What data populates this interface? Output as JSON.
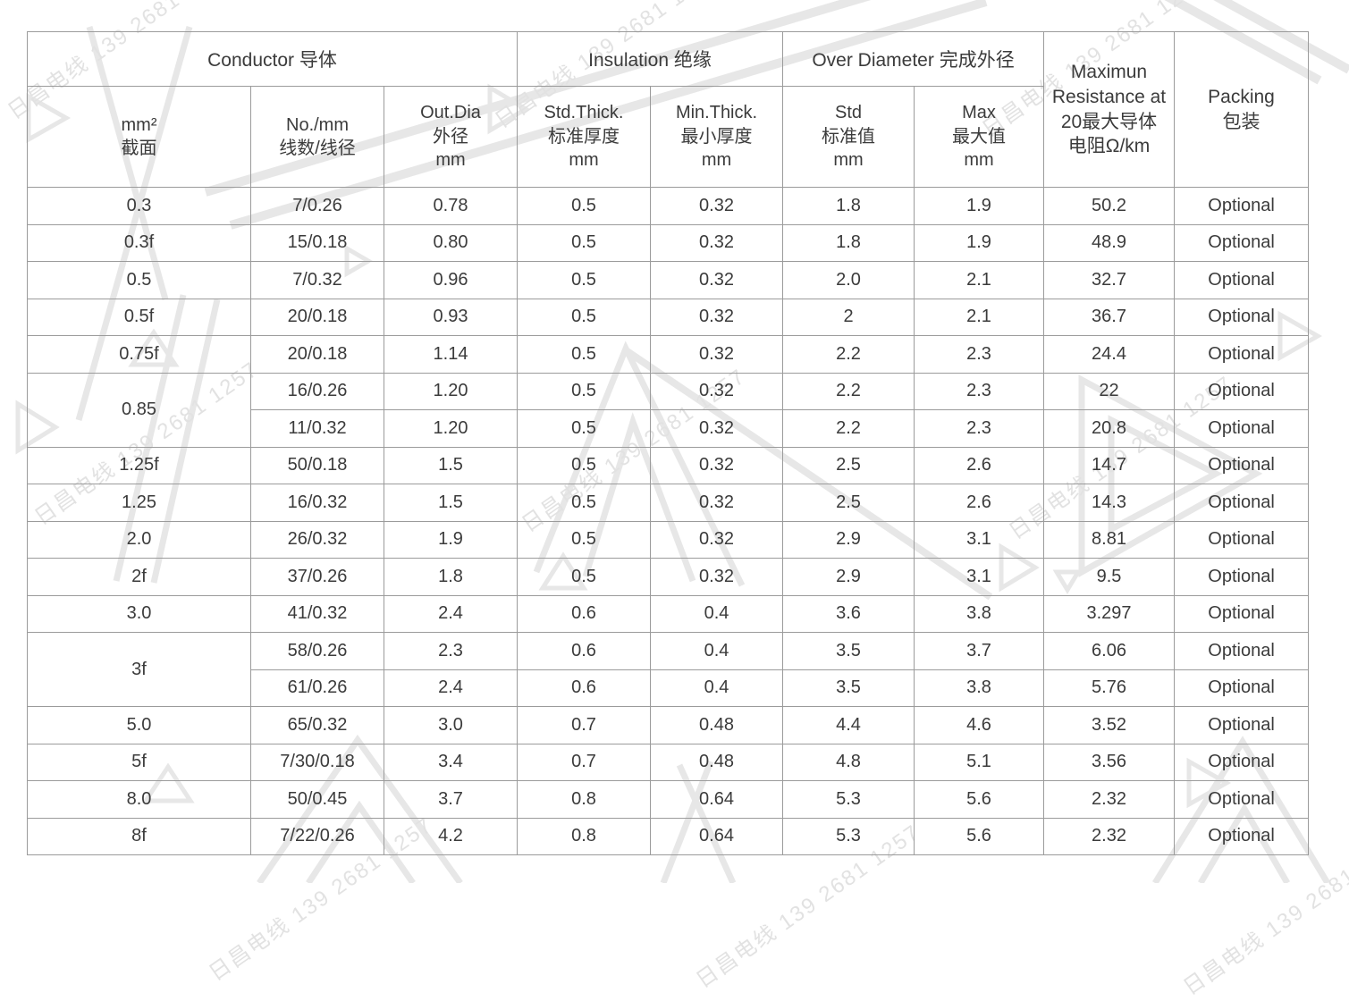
{
  "watermark": {
    "text": "日昌电线 139 2681 1257",
    "color": "#e2e2e2"
  },
  "colors": {
    "border": "#9b9b9b",
    "text": "#3b3b3b",
    "background": "#ffffff"
  },
  "table": {
    "group_headers": [
      {
        "label": "Conductor 导体",
        "colspan": 3
      },
      {
        "label": "Insulation 绝缘",
        "colspan": 2
      },
      {
        "label": "Over Diameter 完成外径",
        "colspan": 2
      }
    ],
    "span_headers": [
      "Maximun\nResistance at\n20最大导体\n电阻Ω/km",
      "Packing\n包装"
    ],
    "sub_headers": [
      "mm²\n截面",
      "No./mm\n线数/线径",
      "Out.Dia\n外径\nmm",
      "Std.Thick.\n标准厚度\nmm",
      "Min.Thick.\n最小厚度\nmm",
      "Std\n标准值\nmm",
      "Max\n最大值\nmm"
    ],
    "rows": [
      {
        "cells": [
          {
            "text": "0.3"
          },
          {
            "text": "7/0.26"
          },
          {
            "text": "0.78"
          },
          {
            "text": "0.5"
          },
          {
            "text": "0.32"
          },
          {
            "text": "1.8"
          },
          {
            "text": "1.9"
          },
          {
            "text": "50.2"
          },
          {
            "text": "Optional"
          }
        ]
      },
      {
        "cells": [
          {
            "text": "0.3f"
          },
          {
            "text": "15/0.18"
          },
          {
            "text": "0.80"
          },
          {
            "text": "0.5"
          },
          {
            "text": "0.32"
          },
          {
            "text": "1.8"
          },
          {
            "text": "1.9"
          },
          {
            "text": "48.9"
          },
          {
            "text": "Optional"
          }
        ]
      },
      {
        "cells": [
          {
            "text": "0.5"
          },
          {
            "text": "7/0.32"
          },
          {
            "text": "0.96"
          },
          {
            "text": "0.5"
          },
          {
            "text": "0.32"
          },
          {
            "text": "2.0"
          },
          {
            "text": "2.1"
          },
          {
            "text": "32.7"
          },
          {
            "text": "Optional"
          }
        ]
      },
      {
        "cells": [
          {
            "text": "0.5f"
          },
          {
            "text": "20/0.18"
          },
          {
            "text": "0.93"
          },
          {
            "text": "0.5"
          },
          {
            "text": "0.32"
          },
          {
            "text": "2"
          },
          {
            "text": "2.1"
          },
          {
            "text": "36.7"
          },
          {
            "text": "Optional"
          }
        ]
      },
      {
        "cells": [
          {
            "text": "0.75f"
          },
          {
            "text": "20/0.18"
          },
          {
            "text": "1.14"
          },
          {
            "text": "0.5"
          },
          {
            "text": "0.32"
          },
          {
            "text": "2.2"
          },
          {
            "text": "2.3"
          },
          {
            "text": "24.4"
          },
          {
            "text": "Optional"
          }
        ]
      },
      {
        "cells": [
          {
            "text": "0.85",
            "rowspan": 2
          },
          {
            "text": "16/0.26"
          },
          {
            "text": "1.20"
          },
          {
            "text": "0.5"
          },
          {
            "text": "0.32"
          },
          {
            "text": "2.2"
          },
          {
            "text": "2.3"
          },
          {
            "text": "22"
          },
          {
            "text": "Optional"
          }
        ]
      },
      {
        "cells": [
          {
            "text": "11/0.32"
          },
          {
            "text": "1.20"
          },
          {
            "text": "0.5"
          },
          {
            "text": "0.32"
          },
          {
            "text": "2.2"
          },
          {
            "text": "2.3"
          },
          {
            "text": "20.8"
          },
          {
            "text": "Optional"
          }
        ]
      },
      {
        "cells": [
          {
            "text": "1.25f"
          },
          {
            "text": "50/0.18"
          },
          {
            "text": "1.5"
          },
          {
            "text": "0.5"
          },
          {
            "text": "0.32"
          },
          {
            "text": "2.5"
          },
          {
            "text": "2.6"
          },
          {
            "text": "14.7"
          },
          {
            "text": "Optional"
          }
        ]
      },
      {
        "cells": [
          {
            "text": "1.25"
          },
          {
            "text": "16/0.32"
          },
          {
            "text": "1.5"
          },
          {
            "text": "0.5"
          },
          {
            "text": "0.32"
          },
          {
            "text": "2.5"
          },
          {
            "text": "2.6"
          },
          {
            "text": "14.3"
          },
          {
            "text": "Optional"
          }
        ]
      },
      {
        "cells": [
          {
            "text": "2.0"
          },
          {
            "text": "26/0.32"
          },
          {
            "text": "1.9"
          },
          {
            "text": "0.5"
          },
          {
            "text": "0.32"
          },
          {
            "text": "2.9"
          },
          {
            "text": "3.1"
          },
          {
            "text": "8.81"
          },
          {
            "text": "Optional"
          }
        ]
      },
      {
        "cells": [
          {
            "text": "2f"
          },
          {
            "text": "37/0.26"
          },
          {
            "text": "1.8"
          },
          {
            "text": "0.5"
          },
          {
            "text": "0.32"
          },
          {
            "text": "2.9"
          },
          {
            "text": "3.1"
          },
          {
            "text": "9.5"
          },
          {
            "text": "Optional"
          }
        ]
      },
      {
        "cells": [
          {
            "text": "3.0"
          },
          {
            "text": "41/0.32"
          },
          {
            "text": "2.4"
          },
          {
            "text": "0.6"
          },
          {
            "text": "0.4"
          },
          {
            "text": "3.6"
          },
          {
            "text": "3.8"
          },
          {
            "text": "3.297"
          },
          {
            "text": "Optional"
          }
        ]
      },
      {
        "cells": [
          {
            "text": "3f",
            "rowspan": 2
          },
          {
            "text": "58/0.26"
          },
          {
            "text": "2.3"
          },
          {
            "text": "0.6"
          },
          {
            "text": "0.4"
          },
          {
            "text": "3.5"
          },
          {
            "text": "3.7"
          },
          {
            "text": "6.06"
          },
          {
            "text": "Optional"
          }
        ]
      },
      {
        "cells": [
          {
            "text": "61/0.26"
          },
          {
            "text": "2.4"
          },
          {
            "text": "0.6"
          },
          {
            "text": "0.4"
          },
          {
            "text": "3.5"
          },
          {
            "text": "3.8"
          },
          {
            "text": "5.76"
          },
          {
            "text": "Optional"
          }
        ]
      },
      {
        "cells": [
          {
            "text": "5.0"
          },
          {
            "text": "65/0.32"
          },
          {
            "text": "3.0"
          },
          {
            "text": "0.7"
          },
          {
            "text": "0.48"
          },
          {
            "text": "4.4"
          },
          {
            "text": "4.6"
          },
          {
            "text": "3.52"
          },
          {
            "text": "Optional"
          }
        ]
      },
      {
        "cells": [
          {
            "text": "5f"
          },
          {
            "text": "7/30/0.18"
          },
          {
            "text": "3.4"
          },
          {
            "text": "0.7"
          },
          {
            "text": "0.48"
          },
          {
            "text": "4.8"
          },
          {
            "text": "5.1"
          },
          {
            "text": "3.56"
          },
          {
            "text": "Optional"
          }
        ]
      },
      {
        "cells": [
          {
            "text": "8.0"
          },
          {
            "text": "50/0.45"
          },
          {
            "text": "3.7"
          },
          {
            "text": "0.8"
          },
          {
            "text": "0.64"
          },
          {
            "text": "5.3"
          },
          {
            "text": "5.6"
          },
          {
            "text": "2.32"
          },
          {
            "text": "Optional"
          }
        ]
      },
      {
        "cells": [
          {
            "text": "8f"
          },
          {
            "text": "7/22/0.26"
          },
          {
            "text": "4.2"
          },
          {
            "text": "0.8"
          },
          {
            "text": "0.64"
          },
          {
            "text": "5.3"
          },
          {
            "text": "5.6"
          },
          {
            "text": "2.32"
          },
          {
            "text": "Optional"
          }
        ]
      }
    ]
  }
}
